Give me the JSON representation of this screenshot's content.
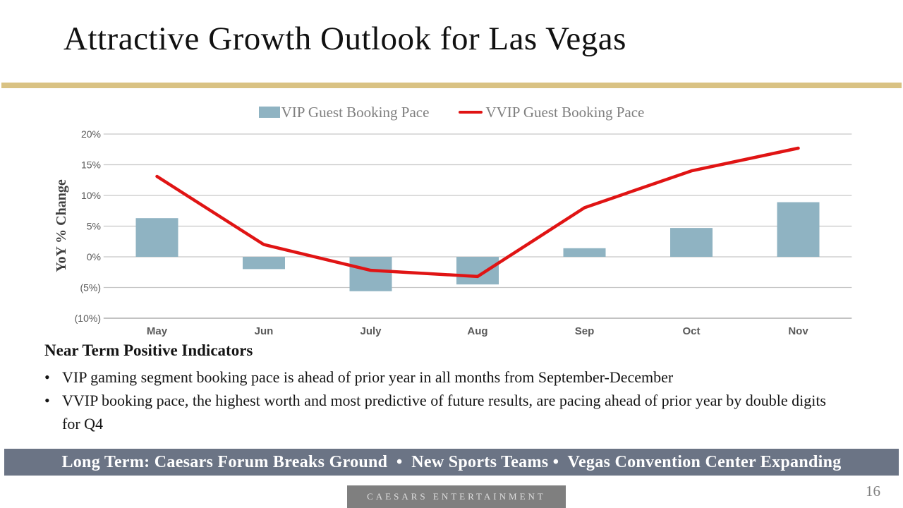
{
  "title": "Attractive Growth Outlook for Las Vegas",
  "colors": {
    "gold_divider": "#D9C283",
    "banner_bg": "#6B7485",
    "footer_box_bg": "#7F7F7F",
    "gridline": "#C6C6C6",
    "axis_line": "#9E9E9E",
    "tick_text": "#595959",
    "axis_title_text": "#3F3F3F"
  },
  "chart_data": {
    "type": "bar",
    "categories": [
      "May",
      "Jun",
      "July",
      "Aug",
      "Sep",
      "Oct",
      "Nov"
    ],
    "series": [
      {
        "name": "VIP Guest Booking Pace",
        "type": "bar",
        "color": "#8FB3C2",
        "values": [
          6.3,
          -2.0,
          -5.6,
          -4.5,
          1.4,
          4.7,
          8.9
        ]
      },
      {
        "name": "VVIP Guest Booking Pace",
        "type": "line",
        "color": "#E01414",
        "values": [
          13.1,
          2.0,
          -2.2,
          -3.2,
          8.0,
          14.0,
          17.7
        ]
      }
    ],
    "title": "",
    "xlabel": "",
    "ylabel": "YoY % Change",
    "ylim": [
      -10,
      20
    ],
    "yticks": [
      {
        "value": 20,
        "label": "20%"
      },
      {
        "value": 15,
        "label": "15%"
      },
      {
        "value": 10,
        "label": "10%"
      },
      {
        "value": 5,
        "label": "5%"
      },
      {
        "value": 0,
        "label": "0%"
      },
      {
        "value": -5,
        "label": "(5%)"
      },
      {
        "value": -10,
        "label": "(10%)"
      }
    ],
    "grid": true,
    "legend_position": "top"
  },
  "near_term": {
    "heading": "Near Term Positive Indicators",
    "bullet_char": "•",
    "bullets": [
      "VIP gaming segment booking pace is ahead of prior year in all months from September-December",
      "VVIP booking pace, the highest worth and most predictive of future results, are pacing ahead of prior year by double digits for Q4"
    ]
  },
  "banner": {
    "text": "Long Term: Caesars Forum Breaks Ground  •  New Sports Teams •  Vegas Convention Center Expanding"
  },
  "footer": {
    "brand": "CAESARS ENTERTAINMENT",
    "page_number": "16"
  }
}
